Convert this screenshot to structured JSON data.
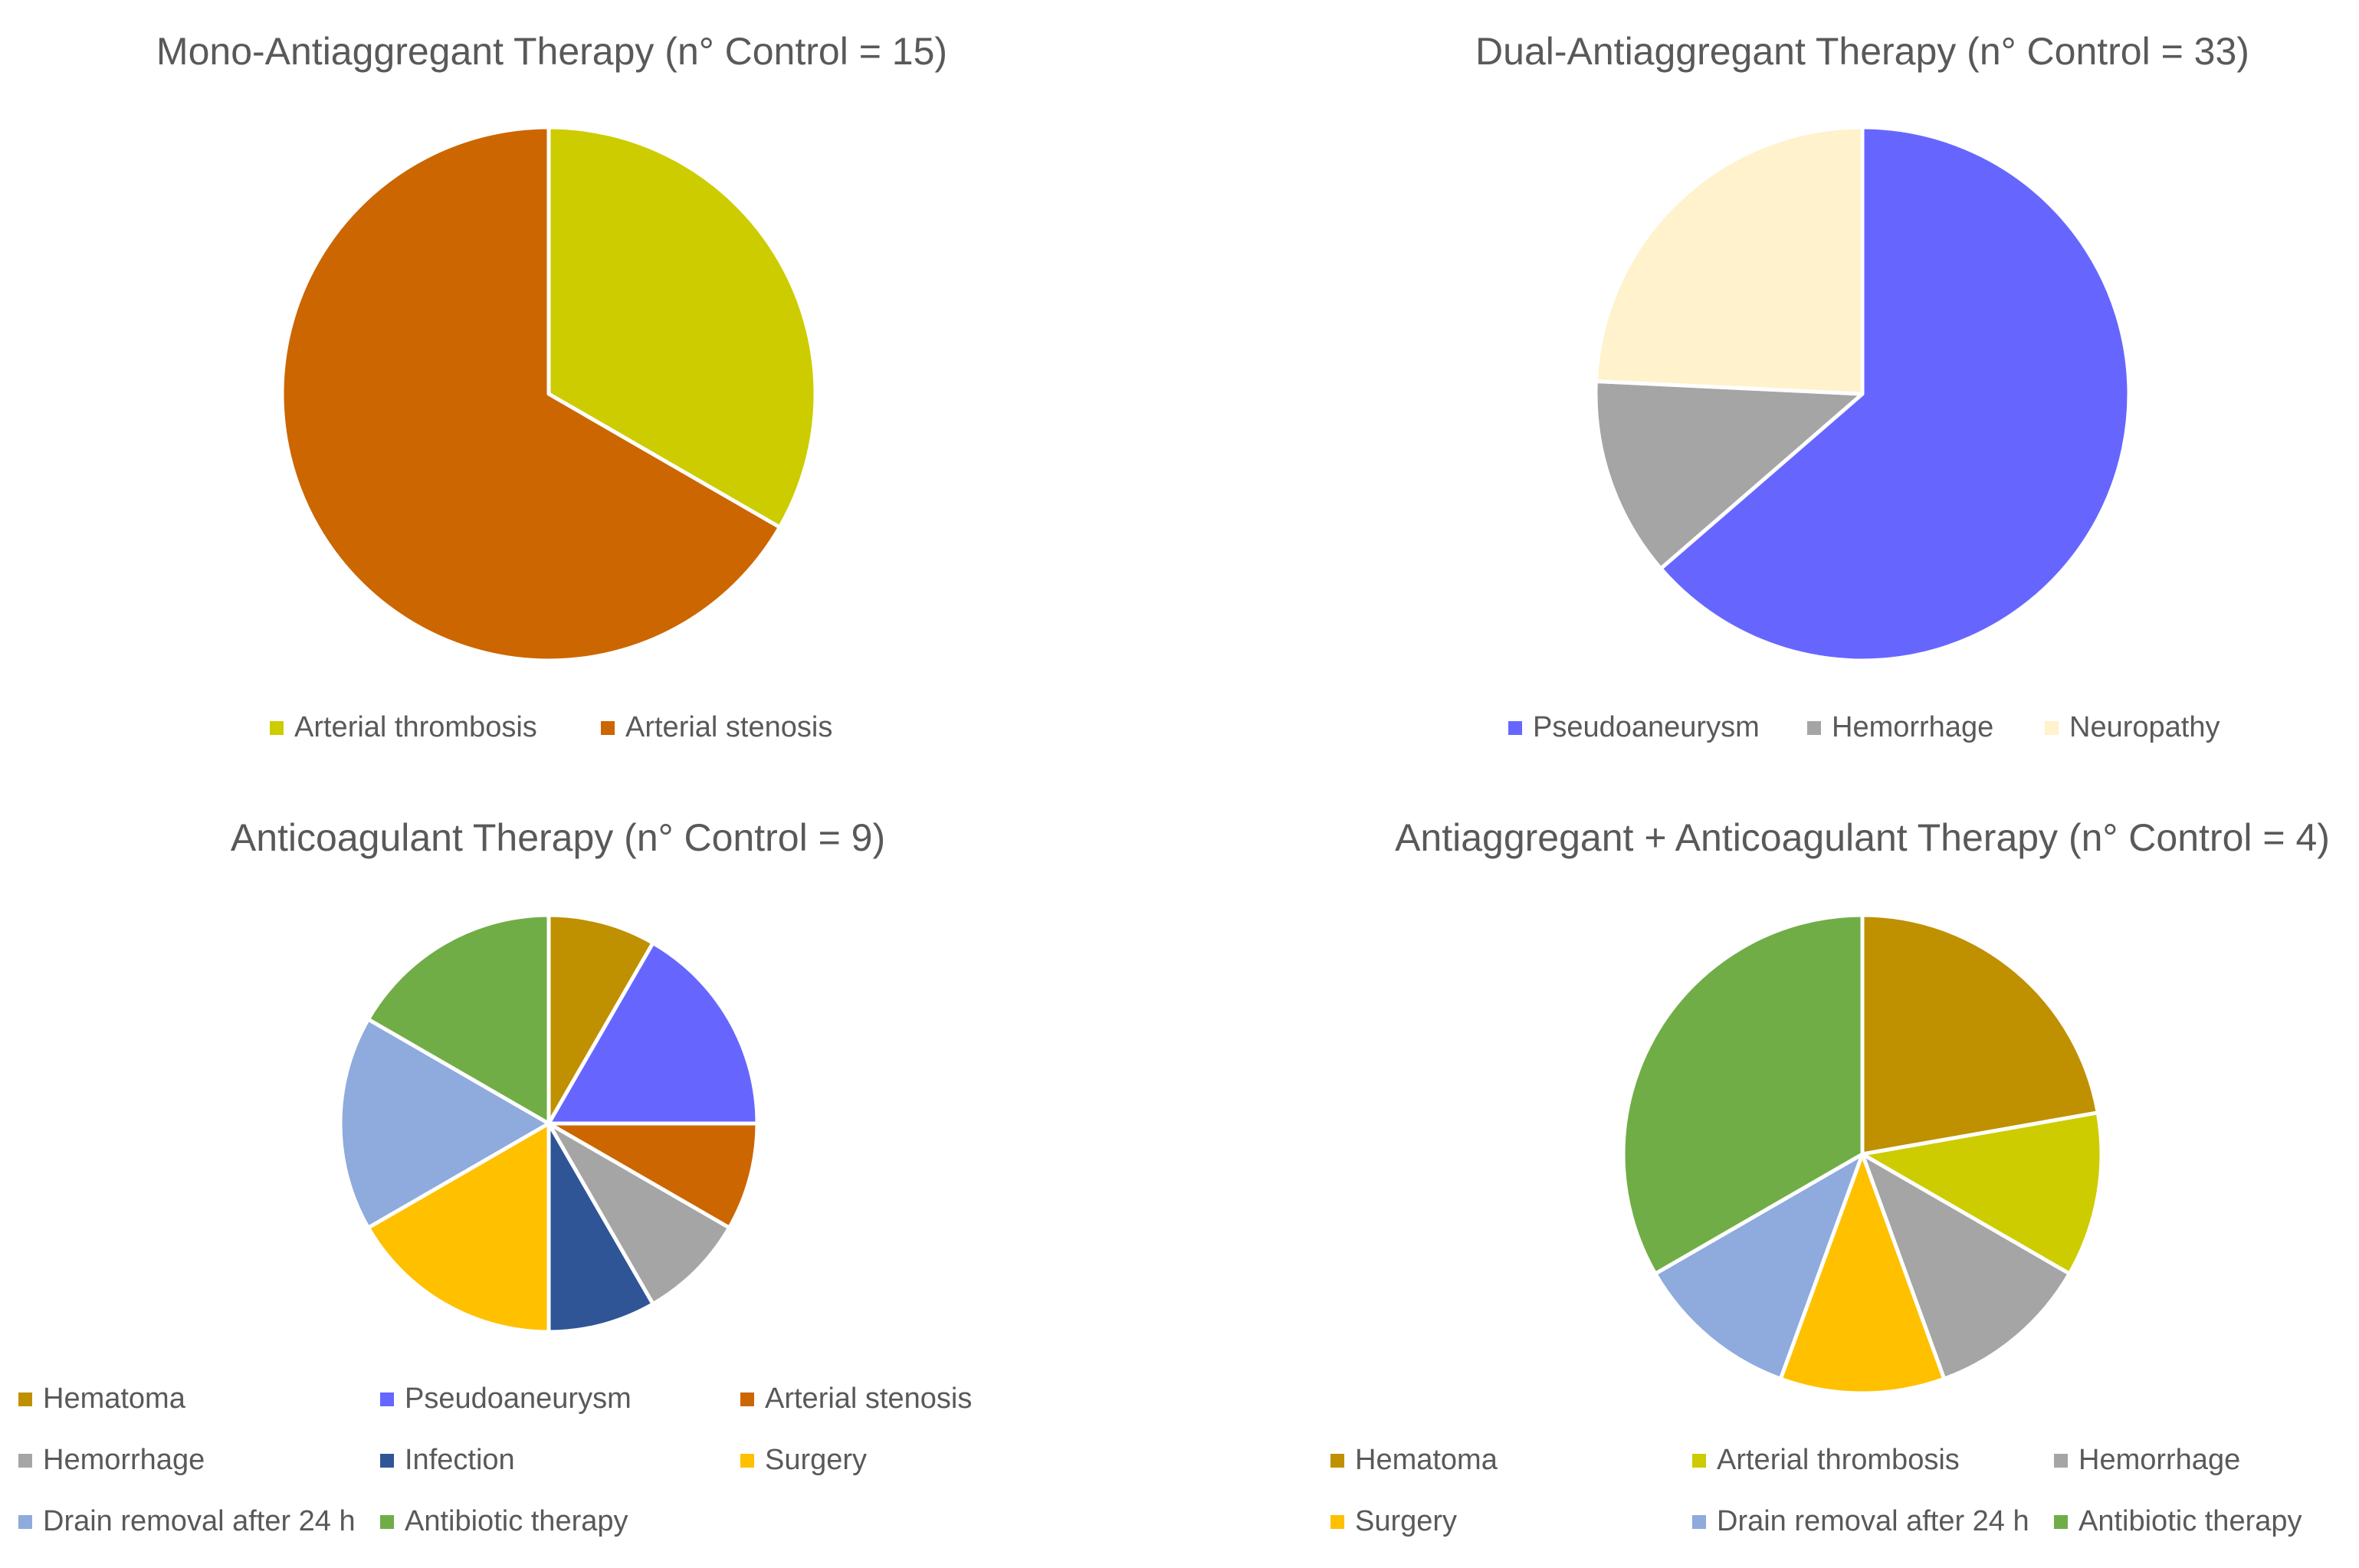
{
  "chart_data": [
    {
      "type": "pie",
      "title": "Mono-Antiaggregant Therapy (n° Control = 15)",
      "categories": [
        "Arterial thrombosis",
        "Arterial stenosis"
      ],
      "values": [
        5,
        10
      ],
      "colors": [
        "#CCCC00",
        "#CC6600"
      ]
    },
    {
      "type": "pie",
      "title": "Dual-Antiaggregant Therapy (n° Control = 33)",
      "categories": [
        "Pseudoaneurysm",
        "Hemorrhage",
        "Neuropathy"
      ],
      "values": [
        21,
        4,
        8
      ],
      "colors": [
        "#6666FF",
        "#A5A5A5",
        "#FFF2CC"
      ]
    },
    {
      "type": "pie",
      "title": "Anticoagulant Therapy (n° Control = 9)",
      "categories": [
        "Hematoma",
        "Pseudoaneurysm",
        "Arterial stenosis",
        "Hemorrhage",
        "Infection",
        "Surgery",
        "Drain removal after 24 h",
        "Antibiotic therapy"
      ],
      "values": [
        1,
        2,
        1,
        1,
        1,
        2,
        2,
        2
      ],
      "colors": [
        "#BF9000",
        "#6666FF",
        "#CC6600",
        "#A5A5A5",
        "#2F5597",
        "#FFC000",
        "#8FAADC",
        "#70AD47"
      ]
    },
    {
      "type": "pie",
      "title": "Antiaggregant + Anticoagulant Therapy (n° Control = 4)",
      "categories": [
        "Hematoma",
        "Arterial thrombosis",
        "Hemorrhage",
        "Surgery",
        "Drain removal after 24 h",
        "Antibiotic therapy"
      ],
      "values": [
        2,
        1,
        1,
        1,
        1,
        3
      ],
      "colors": [
        "#BF9000",
        "#CCCC00",
        "#A5A5A5",
        "#FFC000",
        "#8FAADC",
        "#70AD47"
      ]
    }
  ]
}
